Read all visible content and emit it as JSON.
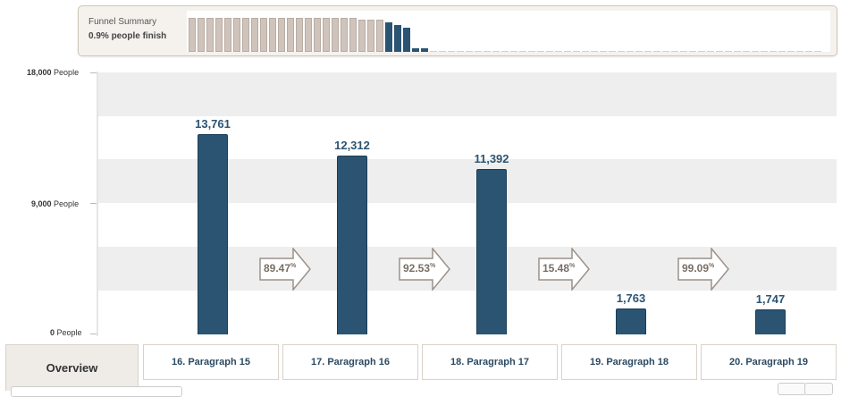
{
  "summary": {
    "title": "Funnel Summary",
    "value": "0.9% people finish",
    "mini_bars_light": [
      1,
      1,
      1,
      1,
      1,
      1,
      1,
      1,
      1,
      1,
      1,
      1,
      1,
      1,
      1,
      1,
      1,
      1,
      1,
      0.96,
      0.96,
      0.96
    ],
    "mini_bars_dark": [
      0.86,
      0.79,
      0.72,
      0.1,
      0.1
    ],
    "mini_bars_tail_count": 44
  },
  "axis": {
    "top": "18,000",
    "mid": "9,000",
    "bottom": "0",
    "unit": "People"
  },
  "chart_data": {
    "type": "bar",
    "categories": [
      "16. Paragraph 15",
      "17. Paragraph 16",
      "18. Paragraph 17",
      "19. Paragraph 18",
      "20. Paragraph 19"
    ],
    "values": [
      13761,
      12312,
      11392,
      1763,
      1747
    ],
    "value_labels": [
      "13,761",
      "12,312",
      "11,392",
      "1,763",
      "1,747"
    ],
    "conversion_labels": [
      "89.47",
      "92.53",
      "15.48",
      "99.09"
    ],
    "conversion_unit": "%",
    "ylim": [
      0,
      18000
    ],
    "bar_color": "#2b5473"
  },
  "tabs": {
    "overview": "Overview",
    "steps": [
      "16. Paragraph 15",
      "17. Paragraph 16",
      "18. Paragraph 17",
      "19. Paragraph 18",
      "20. Paragraph 19"
    ]
  }
}
